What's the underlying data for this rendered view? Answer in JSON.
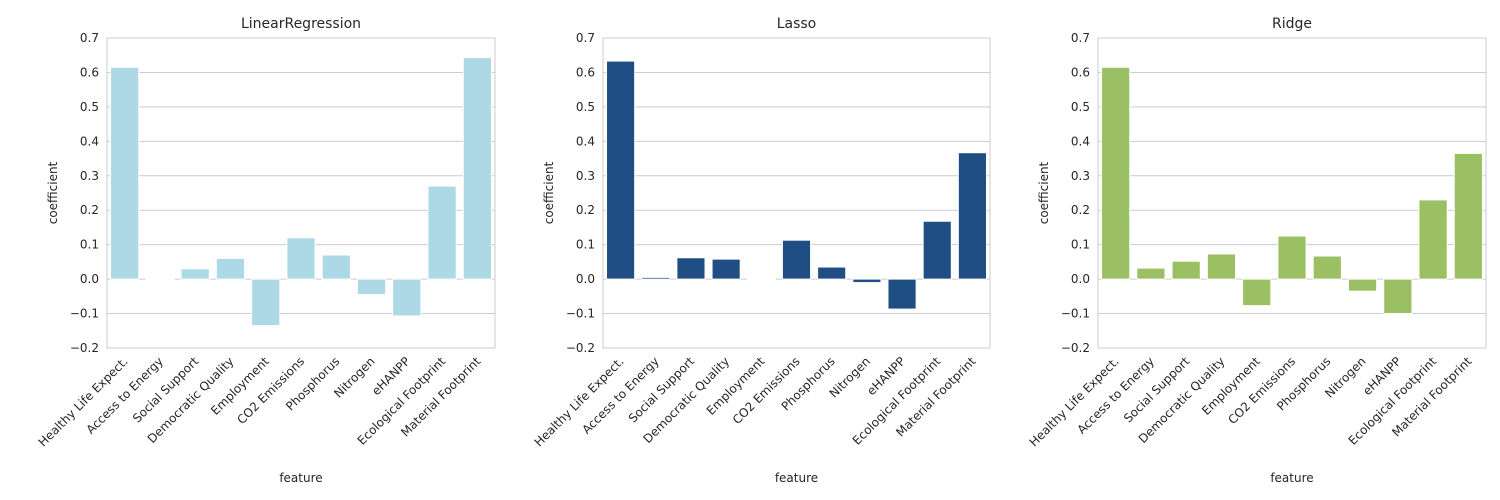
{
  "chart_data": [
    {
      "type": "bar",
      "title": "LinearRegression",
      "xlabel": "feature",
      "ylabel": "coefficient",
      "categories": [
        "Healthy Life Expect.",
        "Access to Energy",
        "Social Support",
        "Democratic Quality",
        "Employment",
        "CO2 Emissions",
        "Phosphorus",
        "Nitrogen",
        "eHANPP",
        "Ecological Footprint",
        "Material Footprint"
      ],
      "values": [
        0.615,
        0.0,
        0.03,
        0.06,
        -0.135,
        0.12,
        0.07,
        -0.045,
        -0.107,
        0.27,
        0.643
      ],
      "ylim": [
        -0.2,
        0.7
      ],
      "yticks": [
        "−0.2",
        "−0.1",
        "0.0",
        "0.1",
        "0.2",
        "0.3",
        "0.4",
        "0.5",
        "0.6",
        "0.7"
      ],
      "grid": true,
      "color": "#add8e6"
    },
    {
      "type": "bar",
      "title": "Lasso",
      "xlabel": "feature",
      "ylabel": "coefficient",
      "categories": [
        "Healthy Life Expect.",
        "Access to Energy",
        "Social Support",
        "Democratic Quality",
        "Employment",
        "CO2 Emissions",
        "Phosphorus",
        "Nitrogen",
        "eHANPP",
        "Ecological Footprint",
        "Material Footprint"
      ],
      "values": [
        0.633,
        0.005,
        0.062,
        0.058,
        0.0,
        0.113,
        0.035,
        -0.01,
        -0.087,
        0.168,
        0.367
      ],
      "ylim": [
        -0.2,
        0.7
      ],
      "yticks": [
        "−0.2",
        "−0.1",
        "0.0",
        "0.1",
        "0.2",
        "0.3",
        "0.4",
        "0.5",
        "0.6",
        "0.7"
      ],
      "grid": true,
      "color": "#1f4e85"
    },
    {
      "type": "bar",
      "title": "Ridge",
      "xlabel": "feature",
      "ylabel": "coefficient",
      "categories": [
        "Healthy Life Expect.",
        "Access to Energy",
        "Social Support",
        "Democratic Quality",
        "Employment",
        "CO2 Emissions",
        "Phosphorus",
        "Nitrogen",
        "eHANPP",
        "Ecological Footprint",
        "Material Footprint"
      ],
      "values": [
        0.615,
        0.032,
        0.052,
        0.073,
        -0.077,
        0.125,
        0.067,
        -0.035,
        -0.1,
        0.23,
        0.365
      ],
      "ylim": [
        -0.2,
        0.7
      ],
      "yticks": [
        "−0.2",
        "−0.1",
        "0.0",
        "0.1",
        "0.2",
        "0.3",
        "0.4",
        "0.5",
        "0.6",
        "0.7"
      ],
      "grid": true,
      "color": "#9bc063"
    }
  ]
}
